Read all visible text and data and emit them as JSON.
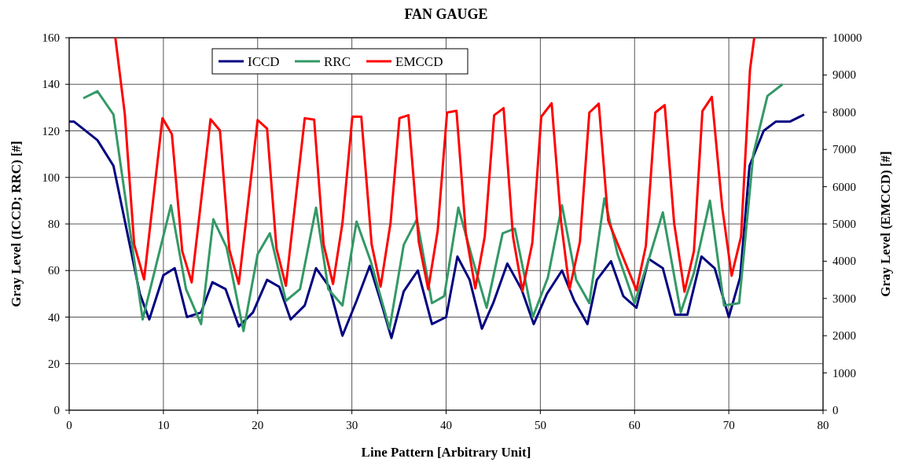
{
  "chart_data": {
    "type": "line",
    "title": "FAN GAUGE",
    "xlabel": "Line Pattern [Arbitrary Unit]",
    "ylabel": "Gray Level (ICCD; RRC) [#]",
    "y2label": "Gray Level (EMCCD) [#]",
    "xlim": [
      0,
      80
    ],
    "xticks": [
      0,
      10,
      20,
      30,
      40,
      50,
      60,
      70,
      80
    ],
    "ylim": [
      0,
      160
    ],
    "yticks": [
      0,
      20,
      40,
      60,
      80,
      100,
      120,
      140,
      160
    ],
    "y2lim": [
      0,
      10000
    ],
    "y2ticks": [
      0,
      1000,
      2000,
      3000,
      4000,
      5000,
      6000,
      7000,
      8000,
      9000,
      10000
    ],
    "grid": true,
    "legend": "top",
    "marker": "none",
    "line_style": "solid",
    "series": [
      {
        "name": "ICCD",
        "color": "#000080",
        "x": [
          0,
          0.5,
          3,
          4.7,
          7.5,
          8.5,
          10,
          11.2,
          12.5,
          14,
          15.2,
          16.6,
          18,
          19.5,
          21,
          22.3,
          23.5,
          25,
          26.2,
          27.6,
          29,
          30.5,
          31.9,
          33.2,
          34.2,
          35.5,
          37,
          38.5,
          40,
          41.2,
          42.5,
          43.8,
          45,
          46.5,
          48,
          49.3,
          50.7,
          52.3,
          53.6,
          55,
          56,
          57.5,
          58.8,
          60.2,
          61.5,
          63,
          64.3,
          65.6,
          67.1,
          68.5,
          70,
          71.2,
          72.2,
          73.7,
          75,
          76.5,
          78
        ],
        "values": [
          124,
          124,
          116,
          105,
          50,
          39,
          58,
          61,
          40,
          42,
          55,
          52,
          36,
          42,
          56,
          53,
          39,
          45,
          61,
          53,
          32,
          47,
          62,
          45,
          31,
          51,
          60,
          37,
          40,
          66,
          56,
          35,
          46,
          63,
          52,
          37,
          50,
          60,
          47,
          37,
          56,
          64,
          49,
          44,
          65,
          61,
          41,
          41,
          66,
          61,
          40,
          57,
          105,
          120,
          124,
          124,
          127
        ]
      },
      {
        "name": "RRC",
        "color": "#339966",
        "x": [
          1.5,
          3,
          4.7,
          7.8,
          10.8,
          12.4,
          14,
          15.3,
          16.7,
          18.5,
          20,
          21.3,
          23,
          24.5,
          26.2,
          27.5,
          29,
          30.5,
          32,
          34,
          35.5,
          36.9,
          38.5,
          39.8,
          41.3,
          42.8,
          44.3,
          46,
          47.3,
          49.2,
          50.8,
          52.3,
          53.8,
          55.2,
          56.8,
          58.2,
          60,
          61.6,
          63,
          64.9,
          66.3,
          68,
          69.5,
          71.1,
          72.6,
          74.1,
          75.7
        ],
        "values": [
          134,
          137,
          127,
          39,
          88,
          52,
          37,
          82,
          70,
          34,
          67,
          76,
          47,
          52,
          87,
          52,
          45,
          81,
          64,
          35,
          71,
          82,
          46,
          49,
          87,
          65,
          44,
          76,
          78,
          40,
          57,
          88,
          56,
          46,
          91,
          67,
          46,
          66,
          85,
          42,
          59,
          90,
          45,
          46,
          110,
          135,
          140
        ]
      },
      {
        "name": "EMCCD",
        "color": "#ff0000",
        "axis": "y2",
        "x": [
          4.9,
          5.9,
          6.9,
          7.95,
          9.9,
          10.9,
          12,
          13,
          15,
          16,
          17,
          18,
          20,
          21,
          22,
          23,
          25,
          26,
          27,
          28,
          29,
          30.05,
          31,
          32.1,
          33.05,
          34.1,
          35.05,
          36,
          37.1,
          38.1,
          39.1,
          40.1,
          41.1,
          42.1,
          43.1,
          44.1,
          45.1,
          46.1,
          47.1,
          48.1,
          49.15,
          50.1,
          51.2,
          52.2,
          53.1,
          54.2,
          55.2,
          56.2,
          57.2,
          60.2,
          61.2,
          62.2,
          63.2,
          64.2,
          65.3,
          66.3,
          67.2,
          68.2,
          69.3,
          70.3,
          71.3,
          72.25,
          72.7
        ],
        "values": [
          10000,
          7960,
          4450,
          3510,
          7840,
          7410,
          4270,
          3430,
          7810,
          7510,
          4310,
          3390,
          7790,
          7560,
          4340,
          3340,
          7840,
          7800,
          4450,
          3390,
          5020,
          7880,
          7880,
          4450,
          3320,
          5020,
          7840,
          7920,
          4520,
          3250,
          4810,
          7990,
          8040,
          4740,
          3270,
          4660,
          7920,
          8110,
          4660,
          3200,
          4490,
          7880,
          8240,
          5060,
          3250,
          4520,
          7990,
          8230,
          5090,
          3220,
          4410,
          7990,
          8190,
          5020,
          3180,
          4270,
          8030,
          8410,
          5450,
          3610,
          4660,
          9140,
          10000
        ]
      }
    ]
  }
}
